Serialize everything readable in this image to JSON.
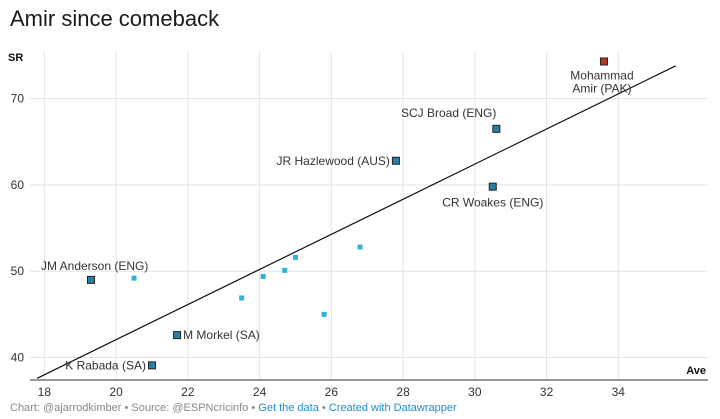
{
  "title": "Amir since comeback",
  "chart_data": {
    "type": "scatter",
    "xlabel": "Ave",
    "ylabel": "SR",
    "xlim": [
      17.6,
      36.5
    ],
    "ylim": [
      37.4,
      75.4
    ],
    "xticks": [
      18,
      20,
      22,
      24,
      26,
      28,
      30,
      32,
      34
    ],
    "yticks": [
      40,
      50,
      60,
      70
    ],
    "grid": true,
    "trendline": {
      "x1": 17.8,
      "y1": 37.6,
      "x2": 35.6,
      "y2": 73.8
    },
    "colors": {
      "highlight": "#b5381e",
      "labeled": "#2a7fa8",
      "other": "#2fb3d6",
      "outline": "#222222"
    },
    "points": [
      {
        "x": 33.6,
        "y": 74.3,
        "label": "Mohammad Amir (PAK)",
        "group": "highlight"
      },
      {
        "x": 30.6,
        "y": 66.5,
        "label": "SCJ Broad (ENG)",
        "group": "labeled"
      },
      {
        "x": 27.8,
        "y": 62.8,
        "label": "JR Hazlewood (AUS)",
        "group": "labeled"
      },
      {
        "x": 30.5,
        "y": 59.8,
        "label": "CR Woakes (ENG)",
        "group": "labeled"
      },
      {
        "x": 19.3,
        "y": 49.0,
        "label": "JM Anderson (ENG)",
        "group": "labeled"
      },
      {
        "x": 21.7,
        "y": 42.6,
        "label": "M Morkel (SA)",
        "group": "labeled"
      },
      {
        "x": 21.0,
        "y": 39.1,
        "label": "K Rabada (SA)",
        "group": "labeled"
      },
      {
        "x": 20.5,
        "y": 49.2,
        "label": "",
        "group": "other"
      },
      {
        "x": 23.5,
        "y": 46.9,
        "label": "",
        "group": "other"
      },
      {
        "x": 24.1,
        "y": 49.4,
        "label": "",
        "group": "other"
      },
      {
        "x": 24.7,
        "y": 50.1,
        "label": "",
        "group": "other"
      },
      {
        "x": 25.0,
        "y": 51.6,
        "label": "",
        "group": "other"
      },
      {
        "x": 25.8,
        "y": 45.0,
        "label": "",
        "group": "other"
      },
      {
        "x": 26.8,
        "y": 52.8,
        "label": "",
        "group": "other"
      }
    ]
  },
  "footer": {
    "credit": "Chart: @ajarrodkimber • Source: @ESPNcricinfo •",
    "get_data": "Get the data",
    "separator": "•",
    "made_with": "Created with Datawrapper"
  }
}
